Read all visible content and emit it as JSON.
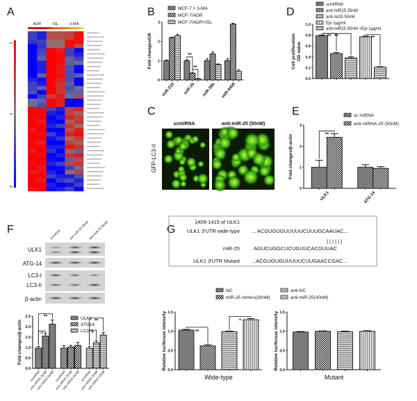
{
  "panels": {
    "A": "A",
    "B": "B",
    "C": "C",
    "D": "D",
    "E": "E",
    "F": "F",
    "G": "G"
  },
  "panel_c": {
    "col_titles": [
      "scmiRNA",
      "anti-miR-25 (50nM)"
    ],
    "row_label": "GFP-LC3-II"
  },
  "panel_f_blot": {
    "lanes": [
      "scmiRNA",
      "anti-miR-25 25nM",
      "anti-miR-25 50nM"
    ],
    "rows": [
      "ULK1",
      "ATG-14",
      "LC3-I",
      "LC3-II",
      "β-actin"
    ]
  },
  "panel_g_sequence": {
    "title": "1409-1415 of ULK1",
    "rows": [
      {
        "label": "ULK1 3'UTR wide-type",
        "seq": "... ACGUGUGUUUUUCUUUGCAAUAC..."
      },
      {
        "label": "",
        "seq": "| | | | | |"
      },
      {
        "label": "miR-25",
        "seq": "AGUCUGGCUCUGUUCACGUUAC"
      },
      {
        "label": "ULK1 3'UTR Mutant",
        "seq": "...ACGUGUGUUUUUCUUGAACCGAC..."
      }
    ]
  },
  "chart_data": [
    {
      "type": "heatmap",
      "panel": "A",
      "column_groups": [
        "ADR",
        "ISL",
        "3-MA"
      ],
      "scale_labels": [
        "2",
        "0",
        "-2"
      ],
      "matrix": [
        [
          -1,
          -1.5,
          0.8,
          0.8,
          1,
          1.8
        ],
        [
          -1,
          -1.5,
          0.8,
          0.8,
          1,
          1.8
        ],
        [
          -1.2,
          -1,
          0.3,
          0.3,
          1.8,
          1.8
        ],
        [
          -2,
          -1.2,
          0.3,
          0.3,
          1.8,
          0.8
        ],
        [
          -2,
          -1,
          2,
          1.6,
          -1,
          -2
        ],
        [
          -2,
          -0.8,
          2,
          1.8,
          -1,
          -1.5
        ],
        [
          -2,
          -0.5,
          2,
          1.8,
          -0.5,
          -1
        ],
        [
          -2,
          -1.5,
          2,
          1.8,
          -0.5,
          -0.3
        ],
        [
          -2,
          -1.5,
          2,
          1.6,
          -0.8,
          -1.8
        ],
        [
          -2,
          -1.5,
          2,
          1.6,
          -0.8,
          -2
        ],
        [
          -2,
          -0.5,
          2,
          1.8,
          -0.8,
          -0.5
        ],
        [
          -1.5,
          -1.8,
          2,
          1.5,
          -0.8,
          -2
        ],
        [
          -1,
          -1.5,
          2,
          1.2,
          -0.5,
          -2
        ],
        [
          -1,
          -0.5,
          2,
          1.2,
          -0.8,
          -0.3
        ],
        [
          -0.8,
          -2,
          2,
          1.2,
          -0.5,
          -0.5
        ],
        [
          -2,
          -1,
          1,
          1.6,
          -0.3,
          0.8
        ],
        [
          -0.3,
          -0.5,
          2,
          1.5,
          -2,
          -2
        ],
        [
          -0.3,
          -0.8,
          2,
          1.5,
          -2,
          -1.8
        ],
        [
          2,
          1.8,
          -1,
          -1.5,
          1,
          1.5
        ],
        [
          2,
          2,
          -1.5,
          -1.8,
          1,
          0.5
        ],
        [
          1.8,
          2,
          -2,
          -1.5,
          1.5,
          1
        ],
        [
          2,
          1.6,
          -1.8,
          -2,
          0.5,
          1.2
        ],
        [
          2,
          2,
          -1.5,
          -1,
          1.2,
          0.3
        ],
        [
          1.6,
          2,
          -2,
          -2,
          0.8,
          1.5
        ],
        [
          2,
          1.8,
          -1,
          -1.8,
          1.5,
          1.8
        ],
        [
          2,
          2,
          -1.8,
          -1.2,
          0.3,
          1
        ],
        [
          1.8,
          1.5,
          -2,
          -2,
          1,
          0.5
        ],
        [
          2,
          2,
          -1.5,
          -1.5,
          1.8,
          1.2
        ],
        [
          1.5,
          2,
          -1.2,
          -2,
          0.5,
          -0.5
        ],
        [
          2,
          1.8,
          -2,
          -1.5,
          1.2,
          1.5
        ],
        [
          2,
          2,
          -1.8,
          -2,
          -0.5,
          0.8
        ],
        [
          1.8,
          2,
          -1.5,
          -1,
          1,
          1.2
        ],
        [
          2,
          1.5,
          -2,
          -1.8,
          -1,
          -0.3
        ],
        [
          1.5,
          1.8,
          -1.5,
          -2,
          0.3,
          1
        ],
        [
          2,
          2,
          -1,
          -1.5,
          -1.5,
          -0.8
        ],
        [
          1.8,
          1.6,
          -2,
          -1.2,
          -0.8,
          -1.5
        ],
        [
          2,
          2,
          -1.5,
          -2,
          -1.8,
          -1
        ],
        [
          1.6,
          2,
          -1.8,
          -1.5,
          -1,
          -2
        ]
      ]
    },
    {
      "type": "bar",
      "panel": "B",
      "ylabel": [
        "Fold changes/U6"
      ],
      "ylim": [
        0,
        3
      ],
      "ytick_labels": [
        "0",
        "1",
        "2",
        "3"
      ],
      "categories": [
        "miR-210",
        "miR-25",
        "miR-30b",
        "miR-4458"
      ],
      "series": [
        {
          "name": "MCF-7 + 3-MA",
          "values": [
            1,
            1,
            1,
            1
          ],
          "errors": [
            0.04,
            0.05,
            0.1,
            0.1
          ]
        },
        {
          "name": "MCF-7/ADR",
          "values": [
            2.2,
            0.35,
            1.35,
            2.9
          ],
          "errors": [
            0.03,
            0.05,
            0.1,
            0.04
          ]
        },
        {
          "name": "MCF-7/ADR+ISL",
          "values": [
            2.3,
            0.07,
            0.8,
            0.45
          ],
          "errors": [
            0.07,
            0.02,
            0.03,
            0.07
          ]
        }
      ],
      "annotations": [
        {
          "from": [
            1,
            0
          ],
          "to": [
            1,
            1
          ],
          "label": "**"
        },
        {
          "from": [
            1,
            1
          ],
          "to": [
            1,
            2
          ],
          "label": "**"
        }
      ]
    },
    {
      "type": "bar",
      "panel": "D",
      "ylabel": [
        "Cell proliferation",
        "OD value"
      ],
      "ylim": [
        0,
        1.0
      ],
      "ytick_labels": [
        "0.0",
        "0.2",
        "0.4",
        "0.6",
        "0.8",
        "1.0"
      ],
      "categories": [
        ""
      ],
      "series": [
        {
          "name": "scmiRNA",
          "values": [
            0.79
          ],
          "errors": [
            0.015
          ]
        },
        {
          "name": "anti-miR25 25nM",
          "values": [
            0.46
          ],
          "errors": [
            0.02
          ]
        },
        {
          "name": "anti-mi25 50nM",
          "values": [
            0.38
          ],
          "errors": [
            0.02
          ]
        },
        {
          "name": "Epi 1μg/ml",
          "values": [
            0.77
          ],
          "errors": [
            0.015
          ]
        },
        {
          "name": "anti-miR25 50nM +Epi 1μg/ml",
          "values": [
            0.21
          ],
          "errors": [
            0.01
          ]
        }
      ],
      "annotations": [
        {
          "from": [
            0,
            0
          ],
          "to": [
            0,
            1
          ],
          "label": "**"
        },
        {
          "from": [
            0,
            0
          ],
          "to": [
            0,
            2
          ],
          "label": "**"
        },
        {
          "from": [
            0,
            3
          ],
          "to": [
            0,
            4
          ],
          "label": "**"
        }
      ]
    },
    {
      "type": "bar",
      "panel": "E",
      "ylabel": [
        "Fold changes/β-actin"
      ],
      "ylim": [
        0,
        3
      ],
      "ytick_labels": [
        "0",
        "1",
        "2",
        "3"
      ],
      "categories": [
        "ULK1",
        "ATG-14"
      ],
      "series": [
        {
          "name": "sc miRNA",
          "values": [
            1,
            1
          ],
          "errors": [
            0.33,
            0.12
          ]
        },
        {
          "name": "anti-miRNA-25 (50nM)",
          "values": [
            2.42,
            0.95
          ],
          "errors": [
            0.17,
            0.08
          ]
        }
      ],
      "annotations": [
        {
          "from": [
            0,
            0
          ],
          "to": [
            0,
            1
          ],
          "label": "**"
        }
      ]
    },
    {
      "type": "bar",
      "panel": "F",
      "ylabel": [
        "Fold changes/β-actin"
      ],
      "ylim": [
        0,
        2.5
      ],
      "ytick_labels": [
        "0.0",
        "0.5",
        "1.0",
        "1.5",
        "2.0",
        "2.5"
      ],
      "categories": [
        "ULK1",
        "ATG14",
        "LC3-II"
      ],
      "series": [
        {
          "name": "scmiRNA",
          "values": [
            0.97,
            0.97,
            0.96
          ],
          "errors": [
            0.08,
            0.12,
            0.08
          ]
        },
        {
          "name": "anti-miR25 25nM",
          "values": [
            1.55,
            1.02,
            1.23
          ],
          "errors": [
            0.14,
            0.08,
            0.1
          ]
        },
        {
          "name": "anti-miR25 50nM",
          "values": [
            2.12,
            1.1,
            1.6
          ],
          "errors": [
            0.2,
            0.14,
            0.12
          ]
        }
      ],
      "annotations": [
        {
          "from": [
            0,
            0
          ],
          "to": [
            0,
            1
          ],
          "label": "*"
        },
        {
          "from": [
            0,
            0
          ],
          "to": [
            0,
            2
          ],
          "label": "**"
        },
        {
          "from": [
            2,
            0
          ],
          "to": [
            2,
            1
          ],
          "label": "*"
        },
        {
          "from": [
            2,
            0
          ],
          "to": [
            2,
            2
          ],
          "label": "**"
        }
      ]
    },
    {
      "type": "bar",
      "panel": "G",
      "xlabel": "Wide-type",
      "ylabel": [
        "Relative luciferase intensity"
      ],
      "ylim": [
        0,
        1.5
      ],
      "ytick_labels": [
        "0.0",
        "0.5",
        "1.0",
        "1.5"
      ],
      "categories": [
        ""
      ],
      "series": [
        {
          "name": "NC",
          "values": [
            1.03
          ],
          "errors": [
            0.02
          ]
        },
        {
          "name": "miR-25 mimics(30nM)",
          "values": [
            0.62
          ],
          "errors": [
            0.03
          ]
        },
        {
          "name": "anti-NC",
          "values": [
            0.99
          ],
          "errors": [
            0.015
          ]
        },
        {
          "name": "anti-miR-25(30nM)",
          "values": [
            1.3
          ],
          "errors": [
            0.03
          ]
        }
      ],
      "annotations": [
        {
          "from": [
            0,
            0
          ],
          "to": [
            0,
            1
          ],
          "label": "**"
        },
        {
          "from": [
            0,
            2
          ],
          "to": [
            0,
            3
          ],
          "label": "*"
        }
      ]
    },
    {
      "type": "bar",
      "panel": "G",
      "xlabel": "Mutant",
      "ylabel": [
        "Relative luciferase intensity"
      ],
      "ylim": [
        0,
        1.5
      ],
      "ytick_labels": [
        "0.0",
        "0.5",
        "1.0",
        "1.5"
      ],
      "categories": [
        ""
      ],
      "series": [
        {
          "name": "NC",
          "values": [
            0.98
          ],
          "errors": [
            0.015
          ]
        },
        {
          "name": "miR-25 mimics(30nM)",
          "values": [
            1.0
          ],
          "errors": [
            0.01
          ]
        },
        {
          "name": "anti-NC",
          "values": [
            0.99
          ],
          "errors": [
            0.015
          ]
        },
        {
          "name": "anti-miR-25(30nM)",
          "values": [
            1.0
          ],
          "errors": [
            0.015
          ]
        }
      ],
      "annotations": []
    }
  ]
}
